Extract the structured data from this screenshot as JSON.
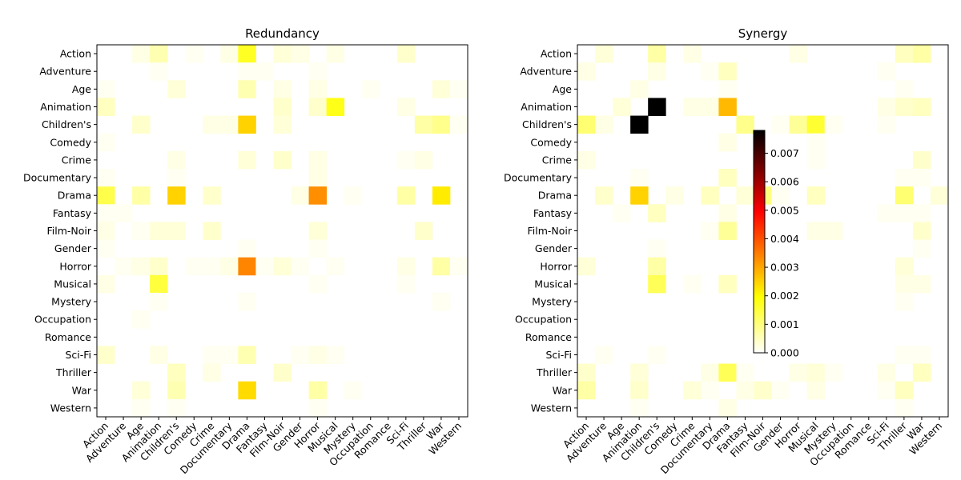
{
  "chart_data": {
    "type": "heatmap",
    "colormap": "hot_r",
    "labels": [
      "Action",
      "Adventure",
      "Age",
      "Animation",
      "Children's",
      "Comedy",
      "Crime",
      "Documentary",
      "Drama",
      "Fantasy",
      "Film-Noir",
      "Gender",
      "Horror",
      "Musical",
      "Mystery",
      "Occupation",
      "Romance",
      "Sci-Fi",
      "Thriller",
      "War",
      "Western"
    ],
    "colorbar": {
      "ticks": [
        "0.000",
        "0.001",
        "0.002",
        "0.003",
        "0.004",
        "0.005",
        "0.006",
        "0.007"
      ],
      "range": [
        0,
        0.0078
      ]
    },
    "panels": [
      {
        "title": "Redundancy",
        "cells": [
          [
            0,
            2,
            0.0002
          ],
          [
            0,
            3,
            0.0006
          ],
          [
            0,
            5,
            0.0001
          ],
          [
            0,
            7,
            0.0002
          ],
          [
            0,
            8,
            0.0017
          ],
          [
            0,
            10,
            0.0003
          ],
          [
            0,
            11,
            0.0002
          ],
          [
            0,
            13,
            0.0002
          ],
          [
            0,
            17,
            0.0004
          ],
          [
            1,
            3,
            0.0001
          ],
          [
            1,
            8,
            0.0001
          ],
          [
            1,
            9,
            0.0001
          ],
          [
            1,
            12,
            0.0001
          ],
          [
            2,
            0,
            0.0001
          ],
          [
            2,
            4,
            0.0003
          ],
          [
            2,
            8,
            0.0006
          ],
          [
            2,
            10,
            0.0002
          ],
          [
            2,
            12,
            0.0002
          ],
          [
            2,
            15,
            0.0001
          ],
          [
            2,
            19,
            0.0003
          ],
          [
            2,
            20,
            0.0001
          ],
          [
            3,
            0,
            0.0005
          ],
          [
            3,
            10,
            0.0004
          ],
          [
            3,
            12,
            0.0004
          ],
          [
            3,
            13,
            0.0018
          ],
          [
            3,
            17,
            0.0002
          ],
          [
            4,
            2,
            0.0004
          ],
          [
            4,
            6,
            0.0002
          ],
          [
            4,
            7,
            0.0002
          ],
          [
            4,
            8,
            0.0025
          ],
          [
            4,
            10,
            0.0003
          ],
          [
            4,
            18,
            0.0007
          ],
          [
            4,
            19,
            0.0009
          ],
          [
            4,
            20,
            0.0001
          ],
          [
            5,
            0,
            0.0001
          ],
          [
            6,
            4,
            0.0002
          ],
          [
            6,
            8,
            0.0003
          ],
          [
            6,
            10,
            0.0004
          ],
          [
            6,
            12,
            0.0002
          ],
          [
            6,
            17,
            0.0001
          ],
          [
            6,
            18,
            0.0002
          ],
          [
            7,
            0,
            0.0001
          ],
          [
            7,
            4,
            0.0001
          ],
          [
            7,
            12,
            0.0002
          ],
          [
            8,
            0,
            0.0014
          ],
          [
            8,
            2,
            0.0007
          ],
          [
            8,
            4,
            0.0025
          ],
          [
            8,
            6,
            0.0004
          ],
          [
            8,
            11,
            0.0002
          ],
          [
            8,
            12,
            0.0033
          ],
          [
            8,
            14,
            0.0001
          ],
          [
            8,
            17,
            0.0007
          ],
          [
            8,
            19,
            0.0022
          ],
          [
            9,
            0,
            0.0001
          ],
          [
            9,
            1,
            0.0001
          ],
          [
            10,
            0,
            0.0002
          ],
          [
            10,
            2,
            0.0001
          ],
          [
            10,
            3,
            0.0003
          ],
          [
            10,
            4,
            0.0003
          ],
          [
            10,
            6,
            0.0004
          ],
          [
            10,
            12,
            0.0003
          ],
          [
            10,
            18,
            0.0004
          ],
          [
            11,
            0,
            0.0001
          ],
          [
            11,
            8,
            0.0001
          ],
          [
            11,
            12,
            0.0001
          ],
          [
            12,
            1,
            0.0001
          ],
          [
            12,
            2,
            0.0002
          ],
          [
            12,
            3,
            0.0004
          ],
          [
            12,
            5,
            0.0001
          ],
          [
            12,
            6,
            0.0001
          ],
          [
            12,
            7,
            0.0002
          ],
          [
            12,
            8,
            0.0034
          ],
          [
            12,
            9,
            0.0001
          ],
          [
            12,
            10,
            0.0003
          ],
          [
            12,
            11,
            0.0001
          ],
          [
            12,
            13,
            0.0001
          ],
          [
            12,
            17,
            0.0002
          ],
          [
            12,
            19,
            0.0007
          ],
          [
            12,
            20,
            0.0001
          ],
          [
            13,
            0,
            0.0002
          ],
          [
            13,
            3,
            0.0015
          ],
          [
            13,
            12,
            0.0001
          ],
          [
            13,
            17,
            0.0001
          ],
          [
            14,
            3,
            0.0001
          ],
          [
            14,
            8,
            0.0001
          ],
          [
            14,
            19,
            0.0001
          ],
          [
            15,
            2,
            0.0001
          ],
          [
            17,
            0,
            0.0004
          ],
          [
            17,
            3,
            0.0002
          ],
          [
            17,
            6,
            0.0001
          ],
          [
            17,
            7,
            0.0001
          ],
          [
            17,
            8,
            0.0006
          ],
          [
            17,
            11,
            0.0001
          ],
          [
            17,
            12,
            0.0002
          ],
          [
            17,
            13,
            0.0001
          ],
          [
            18,
            4,
            0.0005
          ],
          [
            18,
            6,
            0.0002
          ],
          [
            18,
            10,
            0.0004
          ],
          [
            19,
            2,
            0.0003
          ],
          [
            19,
            4,
            0.0006
          ],
          [
            19,
            8,
            0.0024
          ],
          [
            19,
            12,
            0.0007
          ],
          [
            19,
            14,
            0.0001
          ],
          [
            20,
            2,
            0.0001
          ],
          [
            20,
            4,
            0.0001
          ],
          [
            20,
            12,
            0.0001
          ]
        ]
      },
      {
        "title": "Synergy",
        "cells": [
          [
            0,
            1,
            0.0003
          ],
          [
            0,
            4,
            0.0007
          ],
          [
            0,
            6,
            0.0002
          ],
          [
            0,
            12,
            0.0002
          ],
          [
            0,
            18,
            0.0005
          ],
          [
            0,
            19,
            0.0007
          ],
          [
            1,
            0,
            0.0002
          ],
          [
            1,
            4,
            0.0002
          ],
          [
            1,
            7,
            0.0001
          ],
          [
            1,
            8,
            0.0005
          ],
          [
            1,
            17,
            0.0001
          ],
          [
            2,
            3,
            0.0002
          ],
          [
            2,
            8,
            0.0001
          ],
          [
            2,
            18,
            0.0001
          ],
          [
            3,
            2,
            0.0003
          ],
          [
            3,
            4,
            0.0078
          ],
          [
            3,
            6,
            0.0002
          ],
          [
            3,
            7,
            0.0002
          ],
          [
            3,
            8,
            0.0028
          ],
          [
            3,
            17,
            0.0002
          ],
          [
            3,
            18,
            0.0004
          ],
          [
            3,
            19,
            0.0005
          ],
          [
            4,
            0,
            0.0011
          ],
          [
            4,
            1,
            0.0002
          ],
          [
            4,
            3,
            0.0078
          ],
          [
            4,
            9,
            0.0009
          ],
          [
            4,
            11,
            0.0001
          ],
          [
            4,
            12,
            0.0008
          ],
          [
            4,
            13,
            0.0016
          ],
          [
            4,
            14,
            0.0001
          ],
          [
            4,
            17,
            0.0001
          ],
          [
            5,
            8,
            0.0002
          ],
          [
            5,
            13,
            0.0001
          ],
          [
            6,
            0,
            0.0002
          ],
          [
            6,
            13,
            0.0001
          ],
          [
            6,
            19,
            0.0004
          ],
          [
            7,
            3,
            0.0001
          ],
          [
            7,
            8,
            0.0005
          ],
          [
            7,
            18,
            0.0001
          ],
          [
            7,
            19,
            0.0001
          ],
          [
            8,
            1,
            0.0004
          ],
          [
            8,
            3,
            0.0025
          ],
          [
            8,
            5,
            0.0002
          ],
          [
            8,
            7,
            0.0005
          ],
          [
            8,
            9,
            0.0003
          ],
          [
            8,
            10,
            0.001
          ],
          [
            8,
            11,
            0.0001
          ],
          [
            8,
            13,
            0.0005
          ],
          [
            8,
            18,
            0.0011
          ],
          [
            8,
            20,
            0.0003
          ],
          [
            9,
            2,
            0.0001
          ],
          [
            9,
            4,
            0.0005
          ],
          [
            9,
            8,
            0.0002
          ],
          [
            9,
            17,
            0.0001
          ],
          [
            9,
            18,
            0.0001
          ],
          [
            9,
            19,
            0.0001
          ],
          [
            10,
            7,
            0.0001
          ],
          [
            10,
            8,
            0.0008
          ],
          [
            10,
            13,
            0.0002
          ],
          [
            10,
            14,
            0.0002
          ],
          [
            10,
            19,
            0.0004
          ],
          [
            11,
            4,
            0.0001
          ],
          [
            11,
            19,
            0.0001
          ],
          [
            12,
            0,
            0.0003
          ],
          [
            12,
            4,
            0.0007
          ],
          [
            12,
            18,
            0.0003
          ],
          [
            13,
            4,
            0.0013
          ],
          [
            13,
            6,
            0.0001
          ],
          [
            13,
            8,
            0.0005
          ],
          [
            13,
            18,
            0.0002
          ],
          [
            13,
            19,
            0.0002
          ],
          [
            14,
            18,
            0.0001
          ],
          [
            17,
            1,
            0.0001
          ],
          [
            17,
            4,
            0.0001
          ],
          [
            17,
            18,
            0.0001
          ],
          [
            17,
            19,
            0.0001
          ],
          [
            18,
            0,
            0.0004
          ],
          [
            18,
            3,
            0.0003
          ],
          [
            18,
            7,
            0.0002
          ],
          [
            18,
            8,
            0.0013
          ],
          [
            18,
            9,
            0.0001
          ],
          [
            18,
            12,
            0.0002
          ],
          [
            18,
            13,
            0.0003
          ],
          [
            18,
            14,
            0.0001
          ],
          [
            18,
            17,
            0.0002
          ],
          [
            18,
            19,
            0.0005
          ],
          [
            19,
            0,
            0.0007
          ],
          [
            19,
            3,
            0.0004
          ],
          [
            19,
            6,
            0.0003
          ],
          [
            19,
            7,
            0.0001
          ],
          [
            19,
            9,
            0.0002
          ],
          [
            19,
            10,
            0.0004
          ],
          [
            19,
            11,
            0.0001
          ],
          [
            19,
            13,
            0.0002
          ],
          [
            19,
            17,
            0.0001
          ],
          [
            19,
            18,
            0.0005
          ],
          [
            20,
            3,
            0.0001
          ],
          [
            20,
            8,
            0.0002
          ],
          [
            20,
            18,
            0.0001
          ]
        ]
      }
    ]
  }
}
